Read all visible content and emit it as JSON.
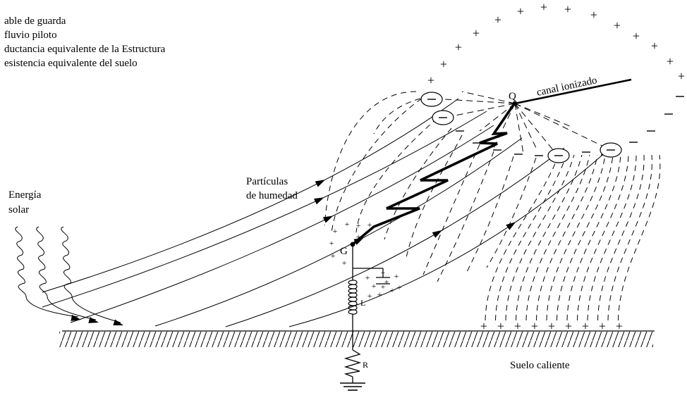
{
  "legend": [
    "able de guarda",
    "fluvio piloto",
    "ductancia equivalente de la Estructura",
    "esistencia equivalente del suelo"
  ],
  "labels": {
    "solar_1": "Energía",
    "solar_2": "solar",
    "humid_1": "Partículas",
    "humid_2": "de humedad",
    "channel": "canal ionizado",
    "point_q": "Q",
    "point_g": "G",
    "inductance": "L",
    "resistance": "R",
    "ground": "Suelo caliente"
  },
  "symbols": {
    "plus": "+",
    "minus": "−",
    "ion": "−"
  }
}
